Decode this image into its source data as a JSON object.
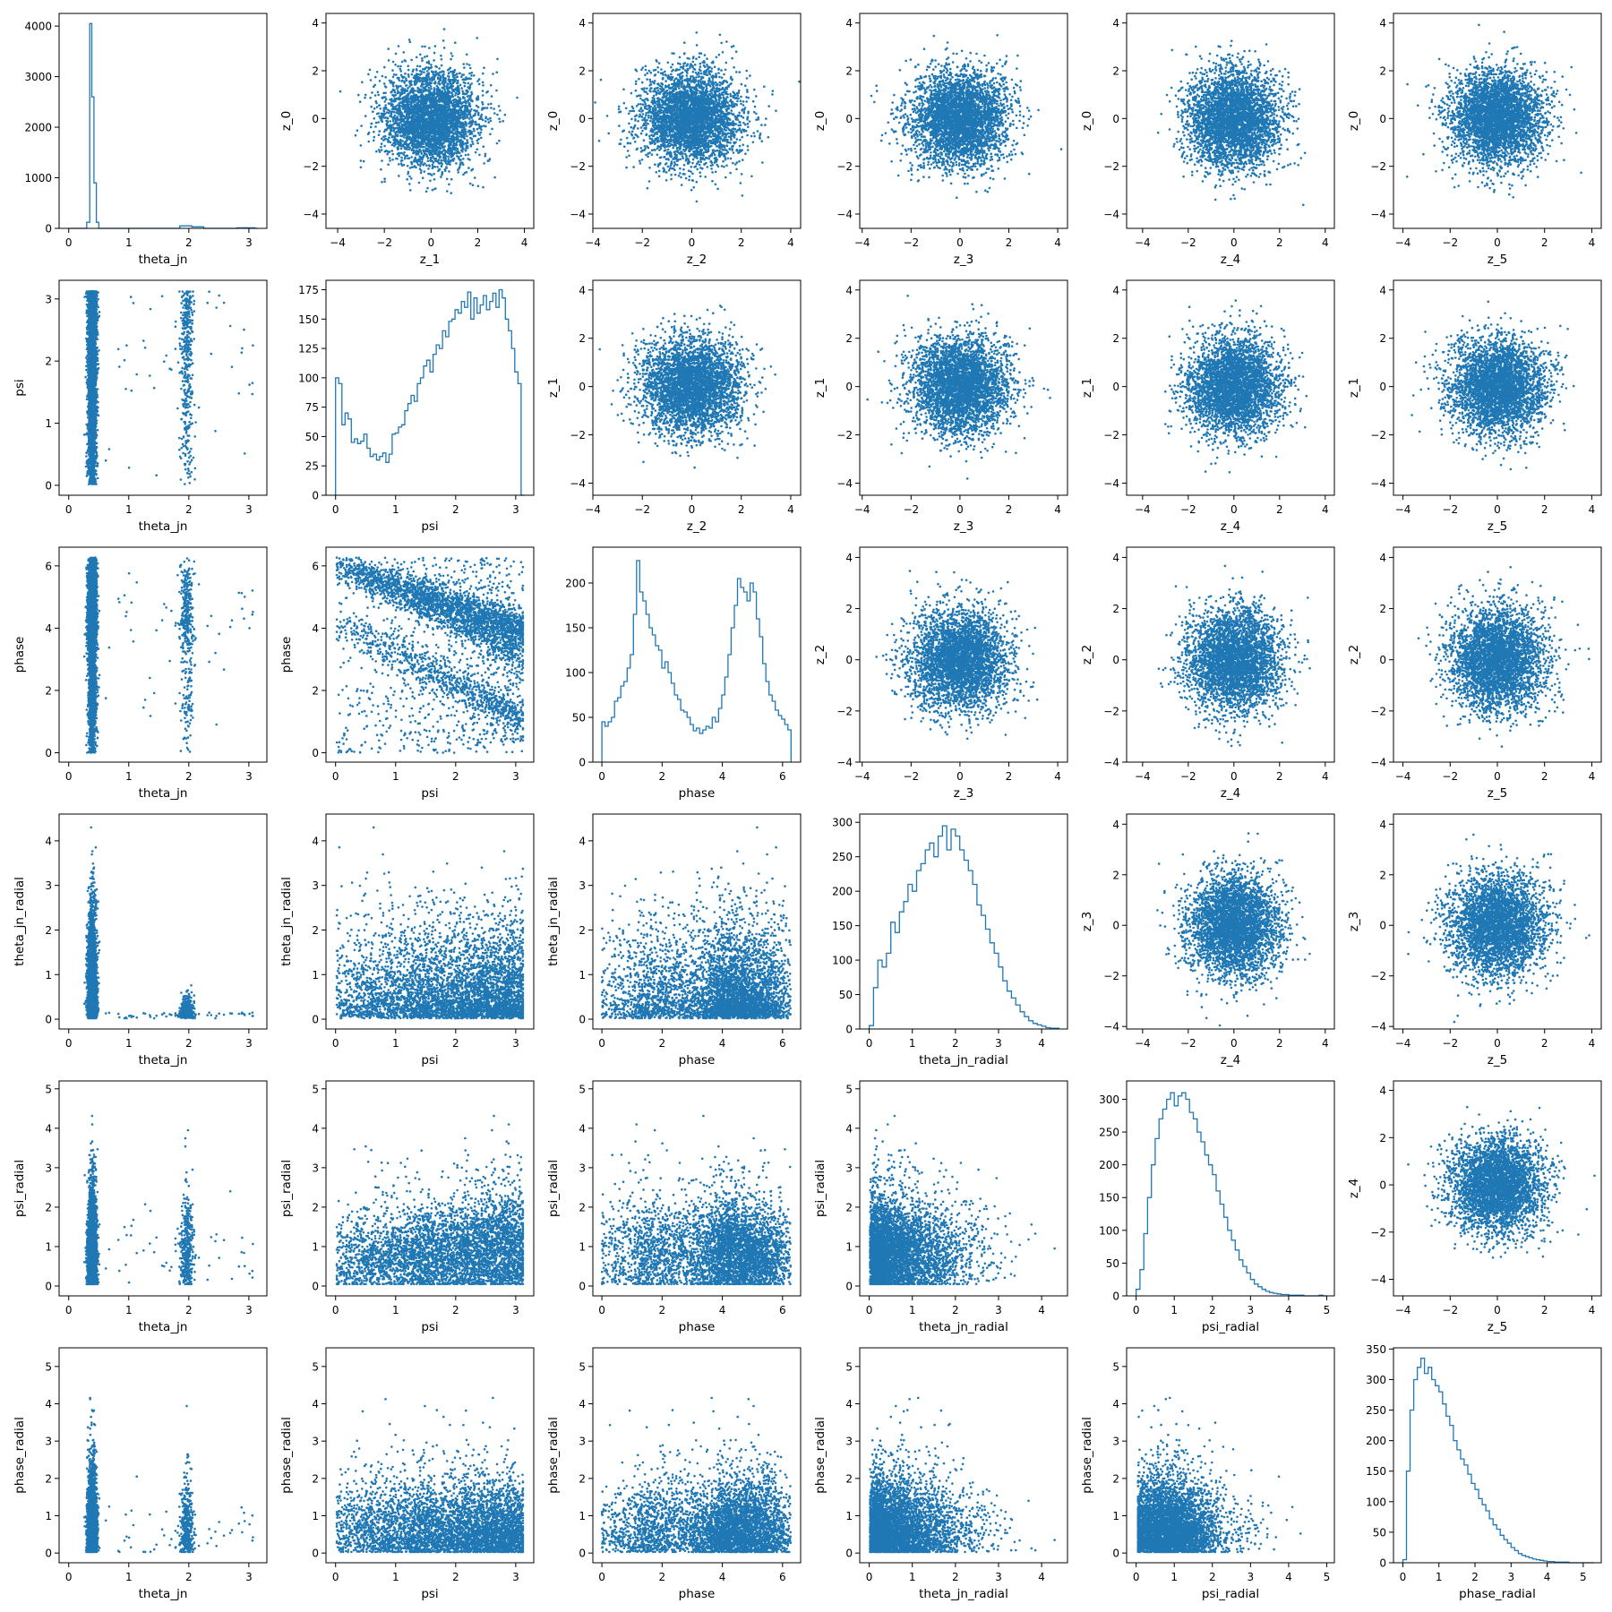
{
  "figure": {
    "rows": 6,
    "cols": 6,
    "marker_color": "#1f77b4",
    "axis_color": "#000000",
    "background": "#ffffff"
  },
  "variables": [
    {
      "name": "theta_jn",
      "kind": "angle",
      "lim": [
        -0.16,
        3.3
      ],
      "ticks": [
        0,
        1,
        2,
        3
      ]
    },
    {
      "name": "psi",
      "kind": "angle",
      "lim": [
        -0.16,
        3.3
      ],
      "ticks": [
        0,
        1,
        2,
        3
      ]
    },
    {
      "name": "phase",
      "kind": "angle",
      "lim": [
        -0.3,
        6.6
      ],
      "ticks": [
        0,
        2,
        4,
        6
      ]
    },
    {
      "name": "theta_jn_radial",
      "kind": "radial",
      "lim": [
        -0.22,
        4.6
      ],
      "ticks": [
        0,
        1,
        2,
        3,
        4
      ]
    },
    {
      "name": "psi_radial",
      "kind": "radial",
      "lim": [
        -0.25,
        5.2
      ],
      "ticks": [
        0,
        1,
        2,
        3,
        4,
        5
      ]
    },
    {
      "name": "phase_radial",
      "kind": "radial",
      "lim": [
        -0.26,
        5.5
      ],
      "ticks": [
        0,
        1,
        2,
        3,
        4,
        5
      ]
    }
  ],
  "latent_variables": [
    {
      "name": "z_0",
      "lim": [
        -4.6,
        4.4
      ],
      "ticks": [
        -4,
        -2,
        0,
        2,
        4
      ]
    },
    {
      "name": "z_1",
      "lim": [
        -4.5,
        4.4
      ],
      "ticks": [
        -4,
        -2,
        0,
        2,
        4
      ]
    },
    {
      "name": "z_2",
      "lim": [
        -4.0,
        4.4
      ],
      "ticks": [
        -4,
        -2,
        0,
        2,
        4
      ]
    },
    {
      "name": "z_3",
      "lim": [
        -4.1,
        4.4
      ],
      "ticks": [
        -4,
        -2,
        0,
        2,
        4
      ]
    },
    {
      "name": "z_4",
      "lim": [
        -4.7,
        4.4
      ],
      "ticks": [
        -4,
        -2,
        0,
        2,
        4
      ]
    },
    {
      "name": "z_5",
      "lim": [
        -4.4,
        4.4
      ],
      "ticks": [
        -4,
        -2,
        0,
        2,
        4
      ]
    }
  ],
  "chart_data": [
    {
      "type": "histogram",
      "cell": [
        0,
        0
      ],
      "xlabel": "theta_jn",
      "xlim": [
        -0.16,
        3.3
      ],
      "ylim": [
        0,
        4250
      ],
      "yticks": [
        0,
        1000,
        2000,
        3000,
        4000
      ],
      "bins": [
        [
          0.3,
          0.35,
          120
        ],
        [
          0.35,
          0.385,
          4050
        ],
        [
          0.385,
          0.42,
          2600
        ],
        [
          0.42,
          0.46,
          900
        ],
        [
          0.46,
          0.5,
          120
        ],
        [
          1.85,
          2.05,
          50
        ],
        [
          2.05,
          2.25,
          30
        ],
        [
          2.8,
          3.1,
          10
        ]
      ]
    },
    {
      "type": "histogram",
      "cell": [
        1,
        1
      ],
      "xlabel": "psi",
      "xlim": [
        -0.16,
        3.3
      ],
      "ylim": [
        0,
        183
      ],
      "yticks": [
        0,
        25,
        50,
        75,
        100,
        125,
        150,
        175
      ],
      "bin_range": [
        0,
        3.1416
      ],
      "counts": [
        100,
        95,
        60,
        70,
        65,
        45,
        48,
        44,
        46,
        52,
        40,
        33,
        35,
        30,
        33,
        36,
        28,
        35,
        52,
        53,
        58,
        60,
        72,
        78,
        85,
        80,
        95,
        100,
        110,
        115,
        105,
        120,
        128,
        125,
        140,
        135,
        148,
        150,
        158,
        155,
        165,
        160,
        173,
        150,
        168,
        155,
        162,
        170,
        158,
        165,
        172,
        160,
        175,
        168,
        150,
        140,
        125,
        105,
        95,
        0
      ]
    },
    {
      "type": "histogram",
      "cell": [
        2,
        2
      ],
      "xlabel": "phase",
      "xlim": [
        -0.3,
        6.6
      ],
      "ylim": [
        0,
        240
      ],
      "yticks": [
        0,
        50,
        100,
        150,
        200
      ],
      "bin_range": [
        0,
        6.2832
      ],
      "counts": [
        45,
        40,
        45,
        50,
        68,
        72,
        85,
        90,
        105,
        120,
        165,
        225,
        190,
        180,
        165,
        150,
        142,
        130,
        125,
        105,
        112,
        100,
        88,
        75,
        70,
        58,
        56,
        50,
        42,
        35,
        38,
        32,
        36,
        40,
        38,
        50,
        45,
        60,
        75,
        95,
        120,
        150,
        175,
        205,
        195,
        190,
        180,
        200,
        190,
        160,
        140,
        110,
        90,
        75,
        68,
        58,
        52,
        48,
        42,
        36
      ]
    },
    {
      "type": "histogram",
      "cell": [
        3,
        3
      ],
      "xlabel": "theta_jn_radial",
      "xlim": [
        -0.22,
        4.6
      ],
      "ylim": [
        0,
        312
      ],
      "yticks": [
        0,
        50,
        100,
        150,
        200,
        250,
        300
      ],
      "bin_range": [
        0,
        4.4
      ],
      "counts": [
        5,
        60,
        100,
        90,
        110,
        155,
        140,
        170,
        185,
        210,
        200,
        230,
        240,
        260,
        270,
        250,
        280,
        295,
        260,
        290,
        280,
        260,
        245,
        230,
        210,
        180,
        165,
        145,
        125,
        110,
        90,
        70,
        55,
        45,
        35,
        25,
        18,
        12,
        8,
        6,
        4,
        2,
        1,
        1
      ]
    },
    {
      "type": "histogram",
      "cell": [
        4,
        4
      ],
      "xlabel": "psi_radial",
      "xlim": [
        -0.25,
        5.2
      ],
      "ylim": [
        0,
        328
      ],
      "yticks": [
        0,
        50,
        100,
        150,
        200,
        250,
        300
      ],
      "bin_range": [
        0,
        5.0
      ],
      "counts": [
        10,
        40,
        95,
        150,
        200,
        240,
        270,
        285,
        300,
        310,
        290,
        305,
        310,
        300,
        280,
        270,
        250,
        235,
        215,
        200,
        185,
        160,
        140,
        120,
        100,
        85,
        70,
        55,
        45,
        35,
        25,
        18,
        14,
        10,
        7,
        5,
        4,
        3,
        2,
        2,
        1,
        1,
        1,
        1,
        0,
        0,
        0,
        0,
        1,
        0
      ]
    },
    {
      "type": "histogram",
      "cell": [
        5,
        5
      ],
      "xlabel": "phase_radial",
      "xlim": [
        -0.26,
        5.5
      ],
      "ylim": [
        0,
        352
      ],
      "yticks": [
        0,
        50,
        100,
        150,
        200,
        250,
        300,
        350
      ],
      "bin_range": [
        0,
        5.3
      ],
      "counts": [
        5,
        150,
        250,
        300,
        320,
        335,
        310,
        320,
        300,
        290,
        280,
        260,
        240,
        225,
        200,
        185,
        170,
        160,
        145,
        130,
        120,
        105,
        95,
        85,
        72,
        62,
        55,
        45,
        38,
        32,
        25,
        20,
        15,
        12,
        10,
        8,
        6,
        5,
        4,
        3,
        2,
        2,
        1,
        1,
        1,
        1,
        0,
        0,
        0,
        0,
        0,
        0,
        0
      ]
    },
    {
      "type": "scatter",
      "description": "Lower-triangle panels: pairwise scatter of the physical parameters (x = column variable, y = row variable); upper-triangle panels: pairwise scatter of the standard-normal latent variables (x = z_col, y = z_(row)).",
      "lower_pairs": [
        [
          "theta_jn",
          "psi"
        ],
        [
          "theta_jn",
          "phase"
        ],
        [
          "psi",
          "phase"
        ],
        [
          "theta_jn",
          "theta_jn_radial"
        ],
        [
          "psi",
          "theta_jn_radial"
        ],
        [
          "phase",
          "theta_jn_radial"
        ],
        [
          "theta_jn",
          "psi_radial"
        ],
        [
          "psi",
          "psi_radial"
        ],
        [
          "phase",
          "psi_radial"
        ],
        [
          "theta_jn_radial",
          "psi_radial"
        ],
        [
          "theta_jn",
          "phase_radial"
        ],
        [
          "psi",
          "phase_radial"
        ],
        [
          "phase",
          "phase_radial"
        ],
        [
          "theta_jn_radial",
          "phase_radial"
        ],
        [
          "psi_radial",
          "phase_radial"
        ]
      ],
      "upper_pairs": [
        [
          "z_1",
          "z_0"
        ],
        [
          "z_2",
          "z_0"
        ],
        [
          "z_3",
          "z_0"
        ],
        [
          "z_4",
          "z_0"
        ],
        [
          "z_5",
          "z_0"
        ],
        [
          "z_2",
          "z_1"
        ],
        [
          "z_3",
          "z_1"
        ],
        [
          "z_4",
          "z_1"
        ],
        [
          "z_5",
          "z_1"
        ],
        [
          "z_3",
          "z_2"
        ],
        [
          "z_4",
          "z_2"
        ],
        [
          "z_5",
          "z_2"
        ],
        [
          "z_4",
          "z_3"
        ],
        [
          "z_5",
          "z_3"
        ],
        [
          "z_5",
          "z_4"
        ]
      ]
    }
  ]
}
